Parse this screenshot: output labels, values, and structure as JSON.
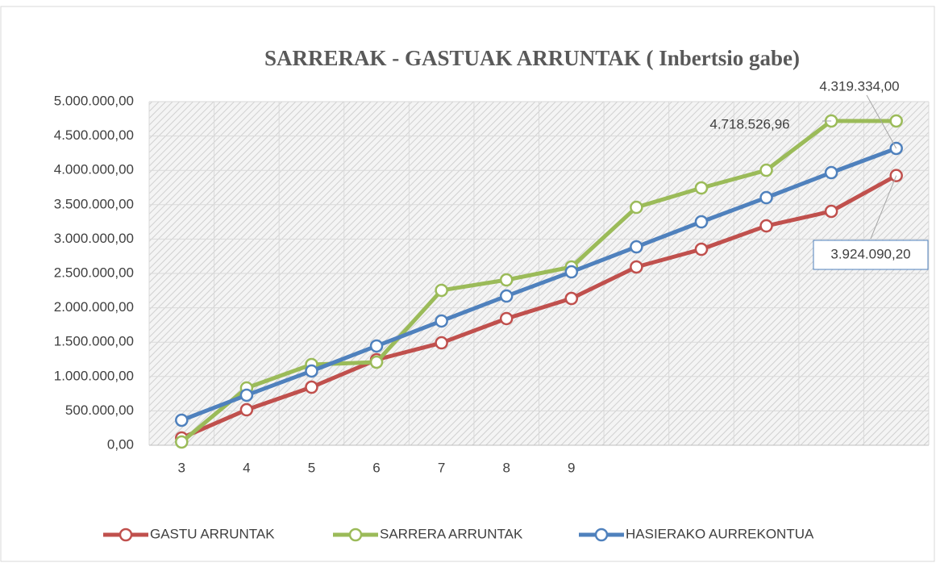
{
  "chart_data": {
    "type": "line",
    "title": "SARRERAK - GASTUAK ARRUNTAK ( Inbertsio gabe)",
    "categories": [
      "3",
      "4",
      "5",
      "6",
      "7",
      "8",
      "9",
      null,
      null,
      null,
      null,
      null
    ],
    "series": [
      {
        "name": "GASTU ARRUNTAK",
        "color": "#c0504d",
        "values": [
          106000,
          516000,
          845000,
          1244000,
          1490000,
          1843000,
          2136000,
          2594000,
          2852000,
          3192000,
          3404000,
          3924090.2
        ],
        "value_labels": [
          null,
          null,
          null,
          null,
          null,
          null,
          null,
          null,
          null,
          null,
          null,
          "3.924.090,20"
        ]
      },
      {
        "name": "SARRERA ARRUNTAK",
        "color": "#9bbb59",
        "values": [
          47000,
          833000,
          1174000,
          1209000,
          2254000,
          2406000,
          2594000,
          3462000,
          3744000,
          4002000,
          4718526.96,
          4718526.96
        ],
        "value_labels": [
          null,
          null,
          null,
          null,
          null,
          null,
          null,
          null,
          null,
          null,
          "4.718.526,96",
          null
        ]
      },
      {
        "name": "HASIERAKO AURREKONTUA",
        "color": "#4f81bd",
        "values": [
          364000,
          728000,
          1080000,
          1444000,
          1808000,
          2171000,
          2523000,
          2887000,
          3251000,
          3603000,
          3967000,
          4319334.0
        ],
        "value_labels": [
          null,
          null,
          null,
          null,
          null,
          null,
          null,
          null,
          null,
          null,
          null,
          "4.319.334,00"
        ]
      }
    ],
    "ylim": [
      0,
      5000000
    ],
    "yticks": [
      {
        "value": 0,
        "label": "0,00"
      },
      {
        "value": 500000,
        "label": "500.000,00"
      },
      {
        "value": 1000000,
        "label": "1.000.000,00"
      },
      {
        "value": 1500000,
        "label": "1.500.000,00"
      },
      {
        "value": 2000000,
        "label": "2.000.000,00"
      },
      {
        "value": 2500000,
        "label": "2.500.000,00"
      },
      {
        "value": 3000000,
        "label": "3.000.000,00"
      },
      {
        "value": 3500000,
        "label": "3.500.000,00"
      },
      {
        "value": 4000000,
        "label": "4.000.000,00"
      },
      {
        "value": 4500000,
        "label": "4.500.000,00"
      },
      {
        "value": 5000000,
        "label": "5.000.000,00"
      }
    ],
    "grid": true,
    "legend": "bottom"
  }
}
